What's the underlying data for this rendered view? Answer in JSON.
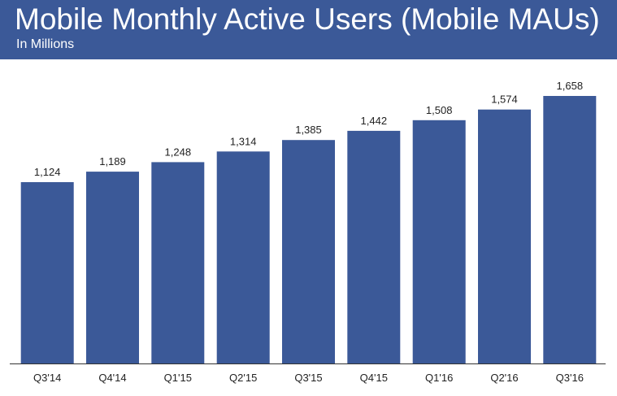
{
  "header": {
    "title": "Mobile Monthly Active Users (Mobile MAUs)",
    "subtitle": "In Millions"
  },
  "colors": {
    "header_bg": "#3b5998",
    "bar": "#3b5998",
    "axis": "#333333",
    "text": "#222222"
  },
  "chart_data": {
    "type": "bar",
    "title": "Mobile Monthly Active Users (Mobile MAUs)",
    "subtitle": "In Millions",
    "xlabel": "",
    "ylabel": "",
    "categories": [
      "Q3'14",
      "Q4'14",
      "Q1'15",
      "Q2'15",
      "Q3'15",
      "Q4'15",
      "Q1'16",
      "Q2'16",
      "Q3'16"
    ],
    "values": [
      1124,
      1189,
      1248,
      1314,
      1385,
      1442,
      1508,
      1574,
      1658
    ],
    "value_labels": [
      "1,124",
      "1,189",
      "1,248",
      "1,314",
      "1,385",
      "1,442",
      "1,508",
      "1,574",
      "1,658"
    ],
    "ylim": [
      0,
      1658
    ],
    "grid": false,
    "legend": "none"
  }
}
